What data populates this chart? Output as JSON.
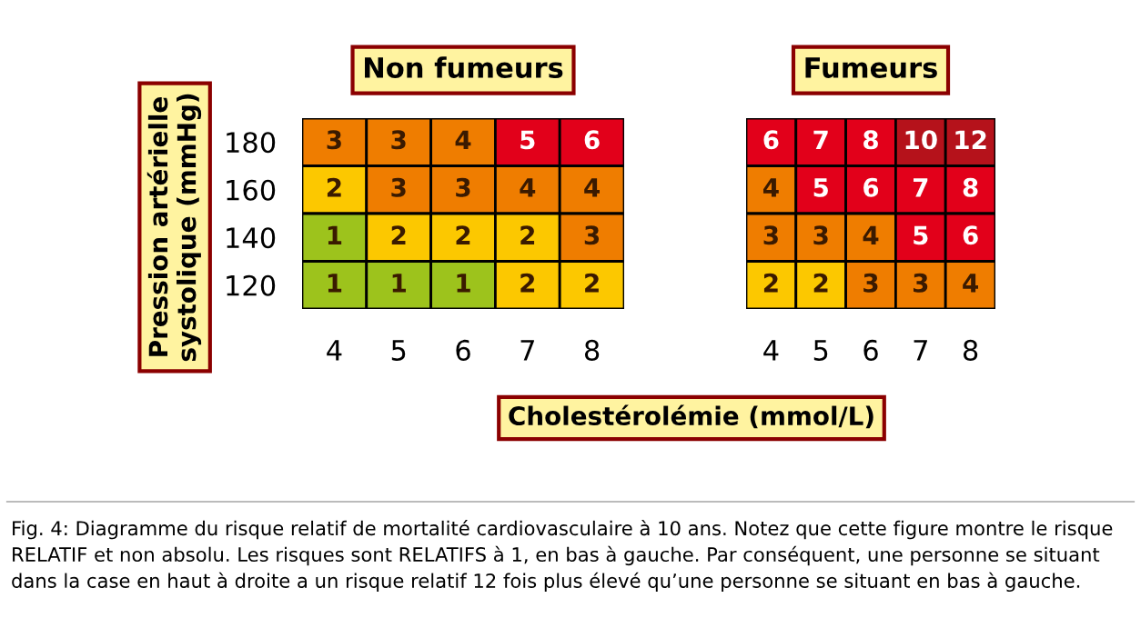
{
  "chart_data": [
    {
      "type": "heatmap",
      "title": "Non fumeurs",
      "ylabel": "Pression artérielle systolique (mmHg)",
      "xlabel": "Cholestérolémie (mmol/L)",
      "categories": [
        "4",
        "5",
        "6",
        "7",
        "8"
      ],
      "y_categories": [
        "180",
        "160",
        "140",
        "120"
      ],
      "cells": [
        [
          3,
          3,
          4,
          5,
          6
        ],
        [
          2,
          3,
          3,
          4,
          4
        ],
        [
          1,
          2,
          2,
          2,
          3
        ],
        [
          1,
          1,
          1,
          2,
          2
        ]
      ],
      "colors": [
        [
          "#ef7d00",
          "#ef7d00",
          "#ef7d00",
          "#e2001a",
          "#e2001a"
        ],
        [
          "#fcc800",
          "#ef7d00",
          "#ef7d00",
          "#ef7d00",
          "#ef7d00"
        ],
        [
          "#9dc31c",
          "#fcc800",
          "#fcc800",
          "#fcc800",
          "#ef7d00"
        ],
        [
          "#9dc31c",
          "#9dc31c",
          "#9dc31c",
          "#fcc800",
          "#fcc800"
        ]
      ],
      "data_labels": true,
      "annotations": [
        "Fig. 4: Diagramme du risque relatif de mortalité cardiovasculaire à 10 ans. Notez que cette figure montre le risque RELATIF et non absolu. Les risques sont RELATIFS à 1, en bas à gauche. Par conséquent, une personne se situant dans la case en haut à droite a un risque relatif 12 fois plus élevé qu’une personne se situant en bas à gauche."
      ]
    },
    {
      "type": "heatmap",
      "title": "Fumeurs",
      "tick_labels": "x",
      "categories": [
        "4",
        "5",
        "6",
        "7",
        "8"
      ],
      "y_categories": [
        "180",
        "160",
        "140",
        "120"
      ],
      "cells": [
        [
          6,
          7,
          8,
          10,
          12
        ],
        [
          4,
          5,
          6,
          7,
          8
        ],
        [
          3,
          3,
          4,
          5,
          6
        ],
        [
          2,
          2,
          3,
          3,
          4
        ]
      ],
      "colors": [
        [
          "#e2001a",
          "#e2001a",
          "#e2001a",
          "#b5121b",
          "#b5121b"
        ],
        [
          "#ef7d00",
          "#e2001a",
          "#e2001a",
          "#e2001a",
          "#e2001a"
        ],
        [
          "#ef7d00",
          "#ef7d00",
          "#ef7d00",
          "#e2001a",
          "#e2001a"
        ],
        [
          "#fcc800",
          "#fcc800",
          "#ef7d00",
          "#ef7d00",
          "#ef7d00"
        ]
      ],
      "data_labels": true
    }
  ]
}
